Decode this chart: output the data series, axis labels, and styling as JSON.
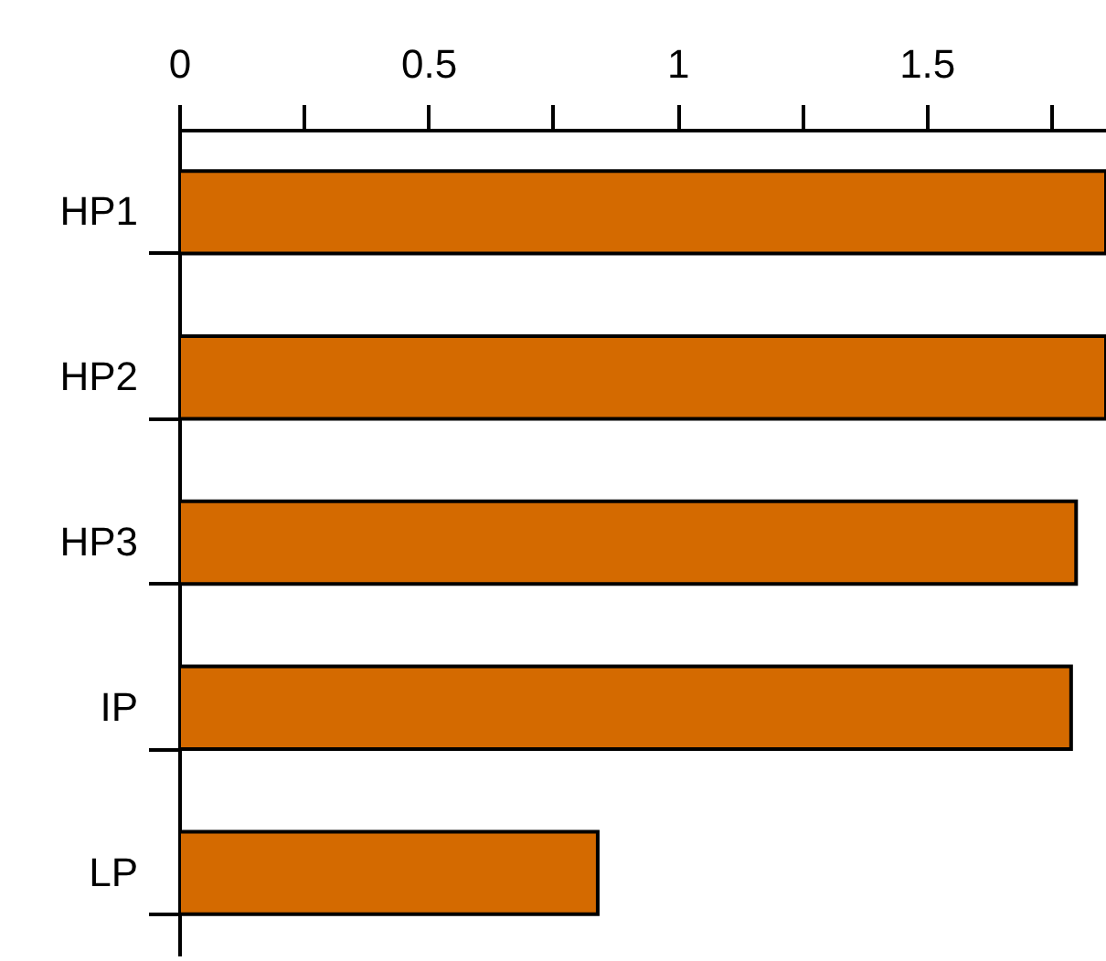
{
  "chart_data": {
    "type": "bar",
    "orientation": "horizontal",
    "categories": [
      "HP1",
      "HP2",
      "HP3",
      "IP",
      "LP"
    ],
    "values": [
      1.86,
      1.86,
      1.8,
      1.79,
      0.84
    ],
    "color": "#d46a00",
    "xlim": [
      0,
      1.86
    ],
    "xticks": [
      0,
      {
        "value": 0.25,
        "label": null
      },
      0.5,
      {
        "value": 0.75,
        "label": null
      },
      1,
      {
        "value": 1.25,
        "label": null
      },
      1.5,
      {
        "value": 1.75,
        "label": null
      }
    ],
    "grid": false
  }
}
